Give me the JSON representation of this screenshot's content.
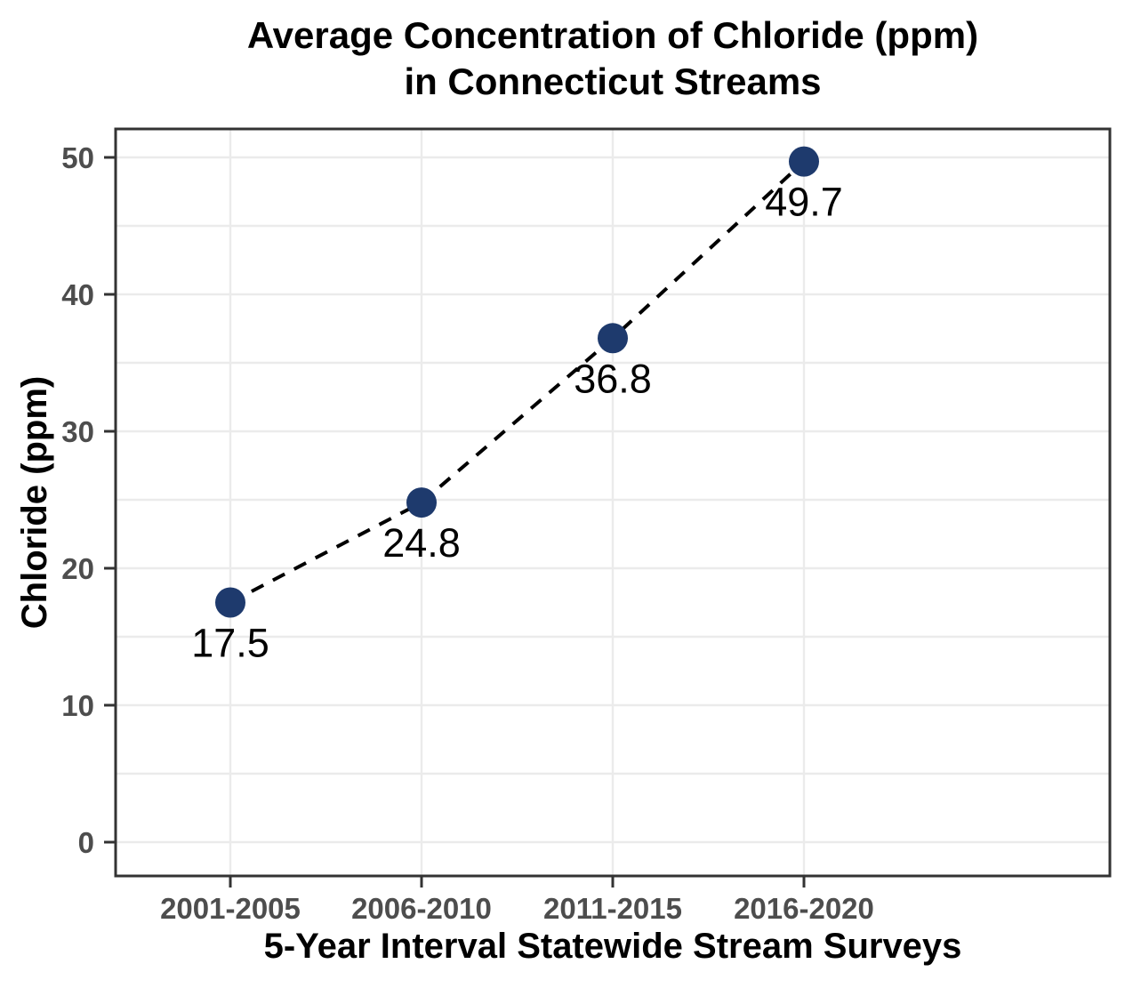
{
  "chart_data": {
    "type": "scatter",
    "title": "Average Concentration of Chloride (ppm)\nin Connecticut Streams",
    "xlabel": "5-Year Interval Statewide Stream Surveys",
    "ylabel": "Chloride (ppm)",
    "categories": [
      "2001-2005",
      "2006-2010",
      "2011-2015",
      "2016-2020"
    ],
    "values": [
      17.5,
      24.8,
      36.8,
      49.7
    ],
    "point_labels": [
      "17.5",
      "24.8",
      "36.8",
      "49.7"
    ],
    "ylim": [
      0,
      50
    ],
    "yticks": [
      0,
      10,
      20,
      30,
      40,
      50
    ],
    "minor_grid_step": 5,
    "grid": "on",
    "legend": "none",
    "line_style": "dashed",
    "marker": "filled-circle",
    "colors": {
      "point": "#1e3a6d",
      "line": "#000000",
      "grid": "#ebebeb",
      "tick_text": "#4d4d4d",
      "panel_border": "#333333",
      "background": "#ffffff",
      "title_text": "#000000"
    }
  }
}
